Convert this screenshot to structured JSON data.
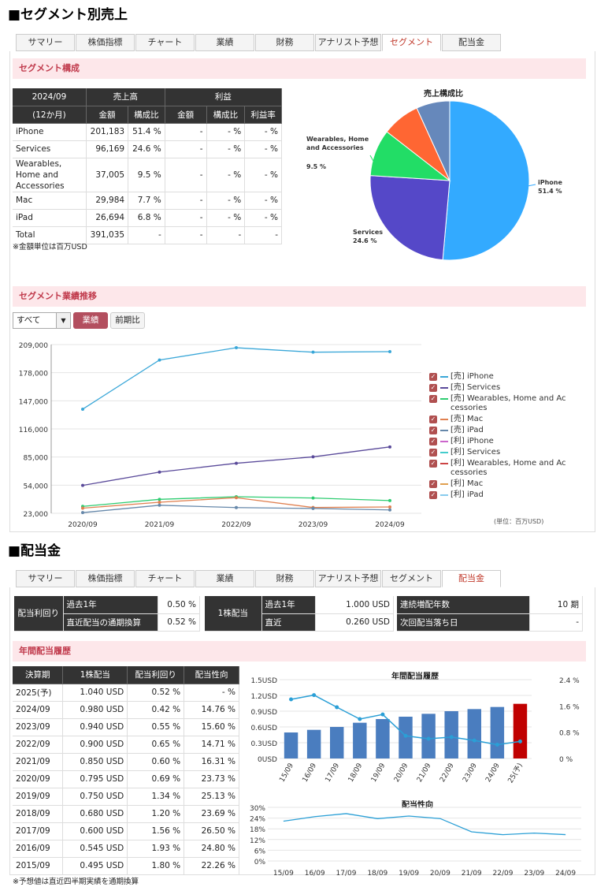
{
  "segment_section": {
    "title": "■セグメント別売上",
    "tabs": [
      "サマリー",
      "株価指標",
      "チャート",
      "業績",
      "財務",
      "アナリスト予想",
      "セグメント",
      "配当金"
    ],
    "active_tab": "セグメント",
    "composition_header": "セグメント構成",
    "table": {
      "period": "2024/09",
      "period_sub": "(12か月)",
      "sales_header": "売上高",
      "profit_header": "利益",
      "sub_headers": [
        "金額",
        "構成比",
        "金額",
        "構成比",
        "利益率"
      ],
      "rows": [
        {
          "name": "iPhone",
          "amount": "201,183",
          "ratio": "51.4 %",
          "p_amount": "-",
          "p_ratio": "- %",
          "margin": "- %"
        },
        {
          "name": "Services",
          "amount": "96,169",
          "ratio": "24.6 %",
          "p_amount": "-",
          "p_ratio": "- %",
          "margin": "- %"
        },
        {
          "name": "Wearables, Home and Accessories",
          "amount": "37,005",
          "ratio": "9.5 %",
          "p_amount": "-",
          "p_ratio": "- %",
          "margin": "- %"
        },
        {
          "name": "Mac",
          "amount": "29,984",
          "ratio": "7.7 %",
          "p_amount": "-",
          "p_ratio": "- %",
          "margin": "- %"
        },
        {
          "name": "iPad",
          "amount": "26,694",
          "ratio": "6.8 %",
          "p_amount": "-",
          "p_ratio": "- %",
          "margin": "- %"
        },
        {
          "name": "Total",
          "amount": "391,035",
          "ratio": "-",
          "p_amount": "-",
          "p_ratio": "-",
          "margin": "-"
        }
      ],
      "unit_note": "※金額単位は百万USD"
    },
    "trend_header": "セグメント業績推移",
    "select_value": "すべて",
    "btn_performance": "業績",
    "btn_yoy": "前期比",
    "unit_label": "(単位：百万USD)",
    "legend": [
      {
        "label": "[売] iPhone",
        "color": "#3aa7d8"
      },
      {
        "label": "[売] Services",
        "color": "#5a4a9a"
      },
      {
        "label": "[売] Wearables, Home and Accessories",
        "color": "#2ecc71"
      },
      {
        "label": "[売] Mac",
        "color": "#e08050"
      },
      {
        "label": "[売] iPad",
        "color": "#6688aa"
      },
      {
        "label": "[利] iPhone",
        "color": "#cc66cc"
      },
      {
        "label": "[利] Services",
        "color": "#44cccc"
      },
      {
        "label": "[利] Wearables, Home and Accessories",
        "color": "#cc4444"
      },
      {
        "label": "[利] Mac",
        "color": "#e0a050"
      },
      {
        "label": "[利] iPad",
        "color": "#88ccee"
      }
    ]
  },
  "dividend_section": {
    "title": "■配当金",
    "tabs": [
      "サマリー",
      "株価指標",
      "チャート",
      "業績",
      "財務",
      "アナリスト予想",
      "セグメント",
      "配当金"
    ],
    "active_tab": "配当金",
    "summary": {
      "yield_label": "配当利回り",
      "past_year_label": "過去1年",
      "past_year_yield": "0.50 %",
      "latest_annual_label": "直近配当の通期換算",
      "latest_annual_yield": "0.52 %",
      "per_share_label": "1株配当",
      "ps_past_year_label": "過去1年",
      "ps_past_year": "1.000 USD",
      "ps_latest_label": "直近",
      "ps_latest": "0.260 USD",
      "consecutive_label": "連続増配年数",
      "consecutive_value": "10 期",
      "next_ex_label": "次回配当落ち日",
      "next_ex_value": "-"
    },
    "history_header": "年間配当履歴",
    "table": {
      "headers": [
        "決算期",
        "1株配当",
        "配当利回り",
        "配当性向"
      ],
      "rows": [
        [
          "2025(予)",
          "1.040 USD",
          "0.52 %",
          "- %"
        ],
        [
          "2024/09",
          "0.980 USD",
          "0.42 %",
          "14.76 %"
        ],
        [
          "2023/09",
          "0.940 USD",
          "0.55 %",
          "15.60 %"
        ],
        [
          "2022/09",
          "0.900 USD",
          "0.65 %",
          "14.71 %"
        ],
        [
          "2021/09",
          "0.850 USD",
          "0.60 %",
          "16.31 %"
        ],
        [
          "2020/09",
          "0.795 USD",
          "0.69 %",
          "23.73 %"
        ],
        [
          "2019/09",
          "0.750 USD",
          "1.34 %",
          "25.13 %"
        ],
        [
          "2018/09",
          "0.680 USD",
          "1.20 %",
          "23.69 %"
        ],
        [
          "2017/09",
          "0.600 USD",
          "1.56 %",
          "26.50 %"
        ],
        [
          "2016/09",
          "0.545 USD",
          "1.93 %",
          "24.80 %"
        ],
        [
          "2015/09",
          "0.495 USD",
          "1.80 %",
          "22.26 %"
        ]
      ],
      "note": "※予想値は直近四半期実績を通期換算"
    }
  },
  "chart_data": [
    {
      "type": "pie",
      "title": "売上構成比",
      "labels": [
        "iPhone",
        "Services",
        "Wearables, Home and Accessories",
        "Mac",
        "iPad"
      ],
      "values": [
        51.4,
        24.6,
        9.5,
        7.7,
        6.8
      ],
      "colors": [
        "#33aaff",
        "#5548c8",
        "#22dd66",
        "#ff6633",
        "#6688bb"
      ],
      "shown_labels": [
        {
          "name": "iPhone",
          "value": "51.4 %"
        },
        {
          "name": "Services",
          "value": "24.6 %"
        },
        {
          "name": "Wearables, Home and Accessories",
          "value": "9.5 %"
        }
      ]
    },
    {
      "type": "line",
      "title": "",
      "categories": [
        "2020/09",
        "2021/09",
        "2022/09",
        "2023/09",
        "2024/09"
      ],
      "ylim": [
        23000,
        209000
      ],
      "yticks": [
        "209,000",
        "178,000",
        "147,000",
        "116,000",
        "85,000",
        "54,000",
        "23,000"
      ],
      "series": [
        {
          "name": "[売] iPhone",
          "color": "#3aa7d8",
          "values": [
            137781,
            191973,
            205489,
            200583,
            201183
          ]
        },
        {
          "name": "[売] Services",
          "color": "#5a4a9a",
          "values": [
            53768,
            68425,
            78129,
            85200,
            96169
          ]
        },
        {
          "name": "[売] Wearables, Home and Accessories",
          "color": "#2ecc71",
          "values": [
            30620,
            38367,
            41241,
            39845,
            37005
          ]
        },
        {
          "name": "[売] Mac",
          "color": "#e08050",
          "values": [
            28622,
            35190,
            40177,
            29357,
            29984
          ]
        },
        {
          "name": "[売] iPad",
          "color": "#6688aa",
          "values": [
            23724,
            31862,
            29292,
            28300,
            26694
          ]
        }
      ]
    },
    {
      "type": "bar",
      "title": "年間配当履歴",
      "categories": [
        "15/09",
        "16/09",
        "17/09",
        "18/09",
        "19/09",
        "20/09",
        "21/09",
        "22/09",
        "23/09",
        "24/09",
        "25(予)"
      ],
      "values": [
        0.495,
        0.545,
        0.6,
        0.68,
        0.75,
        0.795,
        0.85,
        0.9,
        0.94,
        0.98,
        1.04
      ],
      "ylim": [
        0,
        1.5
      ],
      "yticks": [
        "0USD",
        "0.3USD",
        "0.6USD",
        "0.9USD",
        "1.2USD",
        "1.5USD"
      ],
      "y2ticks": [
        "0 %",
        "0.8 %",
        "1.6 %",
        "2.4 %"
      ],
      "y2lim": [
        0,
        2.4
      ],
      "yield_series": {
        "name": "配当利回り",
        "values": [
          1.8,
          1.93,
          1.56,
          1.2,
          1.34,
          0.69,
          0.6,
          0.65,
          0.55,
          0.42,
          0.52
        ]
      },
      "bar_color": "#4a7dbf",
      "forecast_color": "#c00000"
    },
    {
      "type": "line",
      "title": "配当性向",
      "categories": [
        "15/09",
        "16/09",
        "17/09",
        "18/09",
        "19/09",
        "20/09",
        "21/09",
        "22/09",
        "23/09",
        "24/09"
      ],
      "values": [
        22.26,
        24.8,
        26.5,
        23.69,
        25.13,
        23.73,
        16.31,
        14.71,
        15.6,
        14.76
      ],
      "ylim": [
        0,
        30
      ],
      "yticks": [
        "30%",
        "24%",
        "18%",
        "12%",
        "6%",
        "0%"
      ]
    }
  ]
}
